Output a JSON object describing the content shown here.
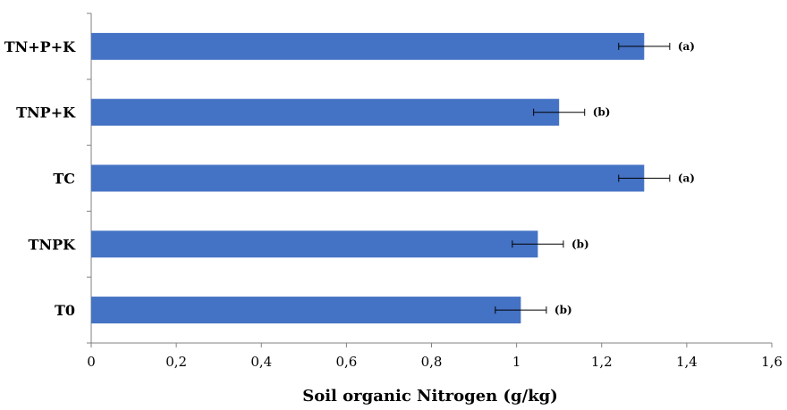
{
  "chart_data": {
    "type": "bar",
    "orientation": "horizontal",
    "categories": [
      "T0",
      "TNPK",
      "TC",
      "TNP+K",
      "TN+P+K"
    ],
    "series": [
      {
        "values": [
          1.01,
          1.05,
          1.3,
          1.1,
          1.3
        ],
        "error": [
          0.06,
          0.06,
          0.06,
          0.06,
          0.06
        ],
        "significance": [
          "(b)",
          "(b)",
          "(a)",
          "(b)",
          "(a)"
        ]
      }
    ],
    "xlabel": "Soil organic Nitrogen (g/kg)",
    "ylabel": "",
    "xlim": [
      0,
      1.6
    ],
    "x_ticks": [
      0,
      0.2,
      0.4,
      0.6,
      0.8,
      1.0,
      1.2,
      1.4,
      1.6
    ],
    "x_tick_labels": [
      "0",
      "0,2",
      "0,4",
      "0,6",
      "0,8",
      "1",
      "1,2",
      "1,4",
      "1,6"
    ],
    "grid": false,
    "legend": "none",
    "colors": {
      "bar": "#4472C4",
      "axis": "#808080",
      "error_bar": "#000000"
    }
  }
}
